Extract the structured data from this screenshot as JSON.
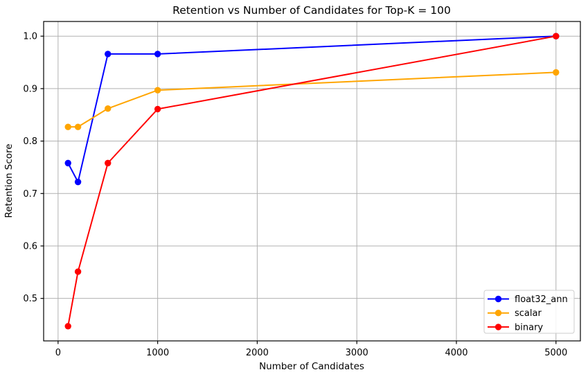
{
  "chart_data": {
    "type": "line",
    "title": "Retention vs Number of Candidates for Top-K = 100",
    "xlabel": "Number of Candidates",
    "ylabel": "Retention Score",
    "x": [
      100,
      200,
      500,
      1000,
      5000
    ],
    "series": [
      {
        "name": "float32_ann",
        "color": "#0000ff",
        "values": [
          0.758,
          0.722,
          0.966,
          0.966,
          1.0
        ]
      },
      {
        "name": "scalar",
        "color": "#ffa500",
        "values": [
          0.827,
          0.827,
          0.862,
          0.897,
          0.931
        ]
      },
      {
        "name": "binary",
        "color": "#ff0000",
        "values": [
          0.447,
          0.551,
          0.758,
          0.861,
          1.0
        ]
      }
    ],
    "xticks": [
      0,
      1000,
      2000,
      3000,
      4000,
      5000
    ],
    "xtick_labels": [
      "0",
      "1000",
      "2000",
      "3000",
      "4000",
      "5000"
    ],
    "yticks": [
      0.5,
      0.6,
      0.7,
      0.8,
      0.9,
      1.0
    ],
    "ytick_labels": [
      "0.5",
      "0.6",
      "0.7",
      "0.8",
      "0.9",
      "1.0"
    ],
    "xlim": [
      -145,
      5245
    ],
    "ylim": [
      0.419,
      1.028
    ],
    "grid": true,
    "grid_color": "#b0b0b0",
    "spine_color": "#000000",
    "background": "#ffffff",
    "legend_position": "lower right",
    "legend_border_color": "#cccccc"
  }
}
